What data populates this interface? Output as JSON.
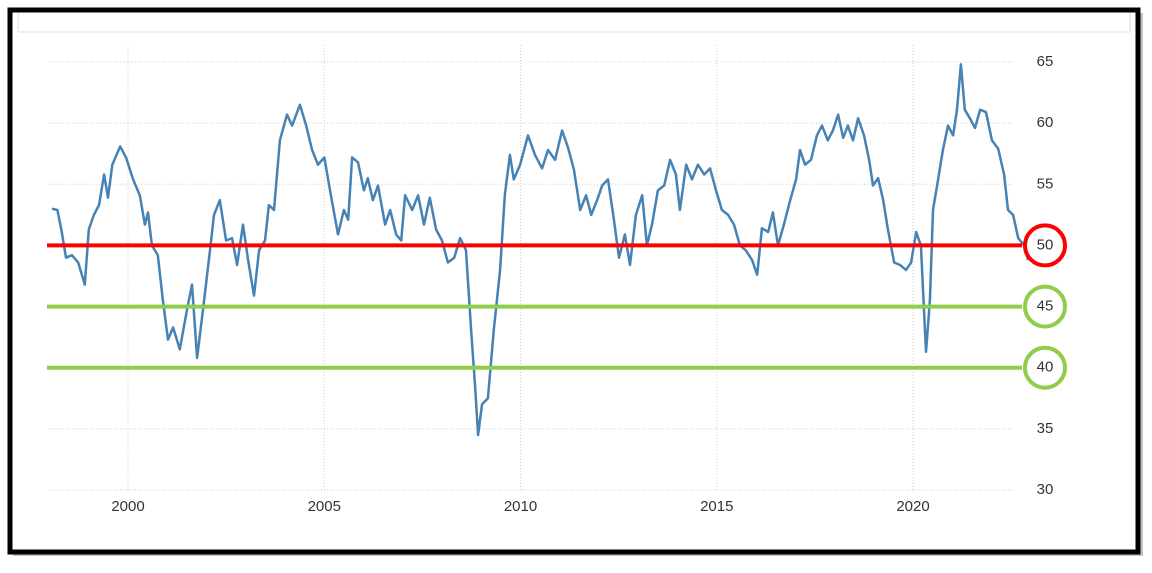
{
  "chart_data": {
    "type": "line",
    "color": "#4682b4",
    "grid": true,
    "xlim": [
      1998,
      2023.5
    ],
    "xticks": [
      2000,
      2005,
      2010,
      2015,
      2020
    ],
    "ylim": [
      30,
      65
    ],
    "yticks": [
      30,
      35,
      40,
      45,
      50,
      55,
      60,
      65
    ],
    "reference_lines": [
      {
        "value": 50,
        "color": "#ff0000"
      },
      {
        "value": 45,
        "color": "#8fce4a"
      },
      {
        "value": 40,
        "color": "#8fce4a"
      }
    ],
    "x": [
      1998.06,
      1998.2,
      1998.3,
      1998.42,
      1998.57,
      1998.73,
      1998.9,
      1999.0,
      1999.13,
      1999.26,
      1999.39,
      1999.49,
      1999.6,
      1999.8,
      1999.95,
      2000.13,
      2000.3,
      2000.43,
      2000.51,
      2000.61,
      2000.76,
      2000.89,
      2001.02,
      2001.15,
      2001.32,
      2001.5,
      2001.63,
      2001.76,
      2001.94,
      2002.09,
      2002.19,
      2002.34,
      2002.5,
      2002.65,
      2002.78,
      2002.93,
      2003.06,
      2003.21,
      2003.34,
      2003.49,
      2003.59,
      2003.72,
      2003.87,
      2004.05,
      2004.18,
      2004.38,
      2004.54,
      2004.69,
      2004.84,
      2005.0,
      2005.17,
      2005.35,
      2005.5,
      2005.61,
      2005.71,
      2005.86,
      2006.01,
      2006.11,
      2006.24,
      2006.37,
      2006.55,
      2006.68,
      2006.83,
      2006.96,
      2007.06,
      2007.24,
      2007.39,
      2007.54,
      2007.69,
      2007.85,
      2008.0,
      2008.15,
      2008.31,
      2008.46,
      2008.61,
      2008.74,
      2008.84,
      2008.92,
      2009.02,
      2009.17,
      2009.32,
      2009.48,
      2009.6,
      2009.73,
      2009.83,
      2009.99,
      2010.19,
      2010.37,
      2010.55,
      2010.7,
      2010.88,
      2011.06,
      2011.21,
      2011.36,
      2011.52,
      2011.67,
      2011.8,
      2011.95,
      2012.08,
      2012.23,
      2012.38,
      2012.51,
      2012.66,
      2012.79,
      2012.94,
      2013.1,
      2013.22,
      2013.35,
      2013.5,
      2013.66,
      2013.81,
      2013.96,
      2014.06,
      2014.22,
      2014.37,
      2014.52,
      2014.68,
      2014.83,
      2014.98,
      2015.13,
      2015.29,
      2015.44,
      2015.59,
      2015.74,
      2015.9,
      2016.03,
      2016.15,
      2016.31,
      2016.43,
      2016.56,
      2016.71,
      2016.87,
      2017.02,
      2017.12,
      2017.25,
      2017.4,
      2017.55,
      2017.68,
      2017.83,
      2017.96,
      2018.09,
      2018.22,
      2018.34,
      2018.47,
      2018.6,
      2018.75,
      2018.88,
      2018.98,
      2019.11,
      2019.24,
      2019.36,
      2019.52,
      2019.67,
      2019.82,
      2019.95,
      2020.08,
      2020.2,
      2020.33,
      2020.43,
      2020.51,
      2020.64,
      2020.76,
      2020.89,
      2021.02,
      2021.12,
      2021.22,
      2021.32,
      2021.45,
      2021.58,
      2021.71,
      2021.86,
      2022.01,
      2022.17,
      2022.32,
      2022.42,
      2022.55,
      2022.68,
      2022.83,
      2022.93
    ],
    "values": [
      53,
      52.9,
      51.3,
      49,
      49.2,
      48.6,
      46.8,
      51.3,
      52.5,
      53.3,
      55.8,
      53.9,
      56.6,
      58.1,
      57.2,
      55.4,
      54.1,
      51.7,
      52.7,
      50,
      49.2,
      45.5,
      42.3,
      43.3,
      41.5,
      44.7,
      46.8,
      40.8,
      45.5,
      49.6,
      52.5,
      53.7,
      50.4,
      50.6,
      48.4,
      51.7,
      48.8,
      45.9,
      49.6,
      50.4,
      53.3,
      52.9,
      58.6,
      60.7,
      59.8,
      61.5,
      59.8,
      57.8,
      56.6,
      57.2,
      54.1,
      50.9,
      52.9,
      52.1,
      57.2,
      56.8,
      54.5,
      55.5,
      53.7,
      54.9,
      51.7,
      52.9,
      50.9,
      50.4,
      54.1,
      52.9,
      54.1,
      51.7,
      53.9,
      51.3,
      50.4,
      48.6,
      49,
      50.6,
      49.6,
      43.1,
      38.6,
      34.5,
      37,
      37.5,
      43.1,
      48,
      54.1,
      57.4,
      55.4,
      56.6,
      59,
      57.4,
      56.3,
      57.8,
      57,
      59.4,
      58,
      56.2,
      52.9,
      54.1,
      52.5,
      53.7,
      54.9,
      55.4,
      52.1,
      49,
      50.9,
      48.4,
      52.5,
      54.1,
      50,
      51.7,
      54.5,
      54.9,
      57,
      55.8,
      52.9,
      56.6,
      55.4,
      56.6,
      55.8,
      56.3,
      54.5,
      52.9,
      52.5,
      51.7,
      50,
      49.6,
      48.8,
      47.6,
      51.4,
      51.1,
      52.7,
      50,
      51.7,
      53.7,
      55.4,
      57.8,
      56.6,
      57,
      59,
      59.8,
      58.6,
      59.4,
      60.7,
      58.8,
      59.8,
      58.6,
      60.4,
      59,
      57,
      54.9,
      55.5,
      53.7,
      51.3,
      48.6,
      48.4,
      48,
      48.6,
      51.1,
      50,
      41.3,
      45.5,
      52.9,
      55.4,
      57.8,
      59.8,
      59,
      61.1,
      64.8,
      61.1,
      60.4,
      59.6,
      61.1,
      60.9,
      58.6,
      57.9,
      55.8,
      52.9,
      52.5,
      50.6,
      50,
      48.8
    ]
  }
}
